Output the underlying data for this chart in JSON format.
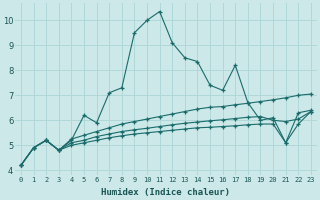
{
  "bg_color": "#cce8e8",
  "grid_color": "#b0d8d8",
  "line_color": "#1a6b6b",
  "xlabel": "Humidex (Indice chaleur)",
  "xlim": [
    -0.5,
    23.5
  ],
  "ylim": [
    3.8,
    10.7
  ],
  "xticks": [
    0,
    1,
    2,
    3,
    4,
    5,
    6,
    7,
    8,
    9,
    10,
    11,
    12,
    13,
    14,
    15,
    16,
    17,
    18,
    19,
    20,
    21,
    22,
    23
  ],
  "yticks": [
    4,
    5,
    6,
    7,
    8,
    9,
    10
  ],
  "series": [
    [
      4.2,
      4.9,
      5.2,
      4.8,
      5.2,
      6.2,
      5.9,
      7.1,
      7.3,
      9.5,
      10.0,
      10.35,
      9.1,
      8.5,
      8.35,
      7.4,
      7.2,
      8.2,
      6.7,
      6.0,
      6.1,
      5.1,
      6.3,
      6.4
    ],
    [
      4.2,
      4.9,
      5.2,
      4.8,
      5.25,
      5.4,
      5.55,
      5.7,
      5.85,
      5.95,
      6.05,
      6.15,
      6.25,
      6.35,
      6.45,
      6.52,
      6.55,
      6.62,
      6.68,
      6.75,
      6.82,
      6.9,
      7.0,
      7.05
    ],
    [
      4.2,
      4.9,
      5.2,
      4.8,
      5.1,
      5.2,
      5.35,
      5.45,
      5.55,
      5.62,
      5.68,
      5.75,
      5.82,
      5.88,
      5.93,
      5.98,
      6.02,
      6.07,
      6.12,
      6.15,
      6.0,
      5.95,
      6.05,
      6.35
    ],
    [
      4.2,
      4.9,
      5.2,
      4.8,
      5.0,
      5.1,
      5.2,
      5.3,
      5.38,
      5.45,
      5.5,
      5.55,
      5.6,
      5.65,
      5.7,
      5.72,
      5.75,
      5.78,
      5.82,
      5.85,
      5.85,
      5.1,
      5.85,
      6.35
    ]
  ]
}
